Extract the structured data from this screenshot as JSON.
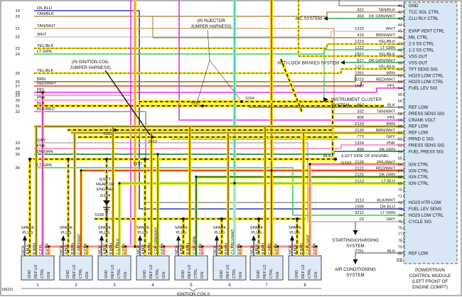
{
  "figure_number": "166221",
  "colors": {
    "sheath": "#ffe60a",
    "dkblu": "#2d3ba8",
    "tanblk": "#b3925a",
    "tanwht": "#cab081",
    "wht": "#c9c9c9",
    "yelblk": "#f0dc00",
    "ltgrn": "#35d04a",
    "brn": "#8f7214",
    "redwht": "#e63329",
    "red": "#dd1111",
    "ppl": "#e231e2",
    "pplwht": "#ef5fe4",
    "pnk": "#ff7fb5",
    "blk": "#1a1a1a",
    "blkwht": "#8f8f8f",
    "gry": "#b3b3b3",
    "dkgrn": "#17722f",
    "dkgrnwht": "#2f9e4f",
    "ltblu": "#2fd6d6",
    "ltbluwht": "#86ecec",
    "brnwht": "#a98b2f",
    "panel": "#d7e7f6",
    "coil_box": "#dfeaf7"
  },
  "left_pins": [
    {
      "num": "19",
      "label": "DK BLU"
    },
    {
      "num": "20",
      "label": "TAN/BLK"
    },
    {
      "num": "21",
      "label": "TAN/WHT"
    },
    {
      "num": "22",
      "label": "WHT"
    },
    {
      "num": "23",
      "label": "YEL/BLK"
    },
    {
      "num": "24",
      "label": "LT GRN"
    },
    {
      "num": "25",
      "label": "YEL/BLK"
    },
    {
      "num": "26",
      "label": "BRN"
    },
    {
      "num": "27",
      "label": "RED/WHT"
    },
    {
      "num": "28",
      "label": "PPL"
    },
    {
      "num": "29",
      "label": "PNK"
    },
    {
      "num": "30",
      "label": "PNK"
    },
    {
      "num": "31",
      "label": "BLK"
    },
    {
      "num": "32",
      "label": "BLK/WHT"
    },
    {
      "num": "33",
      "label": "GRY"
    },
    {
      "num": "34",
      "label": "PNK"
    },
    {
      "num": "35",
      "label": "DK GRN"
    },
    {
      "num": "36",
      "label": "LT GRN"
    }
  ],
  "pcm": {
    "connector_id": "C2",
    "module_lines": [
      "POWERTRAIN",
      "CONTROL MODULE",
      "(LEFT FRONT OF",
      "ENGINE COMPT)"
    ],
    "pins": [
      {
        "num": "41",
        "label": "GND",
        "wire_num": "",
        "wire_color": ""
      },
      {
        "num": "42",
        "label": "TCC SOL CTRL",
        "wire_num": "422",
        "wire_color": "TAN/BLK"
      },
      {
        "num": "43",
        "label": "CLU RLY CTRL",
        "wire_num": "459",
        "wire_color": "DK GRN/WHT"
      },
      {
        "num": "44",
        "label": "",
        "wire_num": "",
        "wire_color": ""
      },
      {
        "num": "45",
        "label": "EVAP VENT CTRL",
        "wire_num": "1310",
        "wire_color": "WHT"
      },
      {
        "num": "46",
        "label": "MIL CTRL",
        "wire_num": "419",
        "wire_color": "BRN/WHT"
      },
      {
        "num": "47",
        "label": "2-3 SS CTRL",
        "wire_num": "1223",
        "wire_color": "YEL/BLK"
      },
      {
        "num": "48",
        "label": "1-2 SS CTRL",
        "wire_num": "1222",
        "wire_color": "LT GRN"
      },
      {
        "num": "49",
        "label": "VSS OUT",
        "wire_num": "1827",
        "wire_color": "YEL/BLK"
      },
      {
        "num": "50",
        "label": "VSS OUT",
        "wire_num": "817",
        "wire_color": "DK GRN/WHT"
      },
      {
        "num": "51",
        "label": "TFT SENS SIG",
        "wire_num": "1227",
        "wire_color": "YEL/BLK"
      },
      {
        "num": "52",
        "label": "HO2S LOW CTRL",
        "wire_num": "2391",
        "wire_color": "BRN"
      },
      {
        "num": "53",
        "label": "HO2S LOW CTRL",
        "wire_num": "3223",
        "wire_color": "RED/WHT"
      },
      {
        "num": "54",
        "label": "FUEL LEV SIG",
        "wire_num": "1589",
        "wire_color": "PPL"
      },
      {
        "num": "55",
        "label": "",
        "wire_num": "",
        "wire_color": ""
      },
      {
        "num": "56",
        "label": "",
        "wire_num": "",
        "wire_color": ""
      },
      {
        "num": "57",
        "label": "REF LOW",
        "wire_num": "852",
        "wire_color": "BLK"
      },
      {
        "num": "58",
        "label": "PRESS SENS SIG",
        "wire_num": "332",
        "wire_color": "TAN/WHT"
      },
      {
        "num": "59",
        "label": "CRANK VOLT",
        "wire_num": "806",
        "wire_color": "PPL"
      },
      {
        "num": "60",
        "label": "REF LOW",
        "wire_num": "2129",
        "wire_color": "BRN"
      },
      {
        "num": "61",
        "label": "REF LOW",
        "wire_num": "2130",
        "wire_color": "BRN/WHT"
      },
      {
        "num": "62",
        "label": "PRND C SIG",
        "wire_num": "773",
        "wire_color": "GRY"
      },
      {
        "num": "63",
        "label": "PRESS SENS SIG",
        "wire_num": "1224",
        "wire_color": "PNK"
      },
      {
        "num": "64",
        "label": "FUEL PRESS SIG",
        "wire_num": "890",
        "wire_color": "DK GRN"
      },
      {
        "num": "65",
        "label": "",
        "wire_num": "",
        "wire_color": ""
      },
      {
        "num": "66",
        "label": "IGN CTRL",
        "wire_num": "2128",
        "wire_color": "PPL/WHT"
      },
      {
        "num": "67",
        "label": "IGN CTRL",
        "wire_num": "2122",
        "wire_color": "RED/WHT"
      },
      {
        "num": "68",
        "label": "IGN CTRL",
        "wire_num": "2125",
        "wire_color": "DK GRN"
      },
      {
        "num": "69",
        "label": "IGN CTRL",
        "wire_num": "2123",
        "wire_color": "LT BLU"
      },
      {
        "num": "70",
        "label": "",
        "wire_num": "",
        "wire_color": ""
      },
      {
        "num": "71",
        "label": "",
        "wire_num": "",
        "wire_color": ""
      },
      {
        "num": "72",
        "label": "HO2S HTR LOW",
        "wire_num": "3113",
        "wire_color": "BLK/WHT"
      },
      {
        "num": "73",
        "label": "FUEL LEV SENS",
        "wire_num": "1936",
        "wire_color": "DK BLU"
      },
      {
        "num": "74",
        "label": "HO2S LOW CTRL",
        "wire_num": "3212",
        "wire_color": "LT GRN"
      },
      {
        "num": "75",
        "label": "CYCLE SIG",
        "wire_num": "23",
        "wire_color": "GRY"
      },
      {
        "num": "76",
        "label": "",
        "wire_num": "",
        "wire_color": ""
      },
      {
        "num": "77",
        "label": "",
        "wire_num": "",
        "wire_color": ""
      },
      {
        "num": "78",
        "label": "",
        "wire_num": "",
        "wire_color": ""
      },
      {
        "num": "79",
        "label": "",
        "wire_num": "",
        "wire_color": ""
      },
      {
        "num": "80",
        "label": "REF LOW",
        "wire_num": "2751",
        "wire_color": "BLK"
      }
    ]
  },
  "systems": {
    "ac": "A/C SYSTEM",
    "abs": "ANTI-LOCK BRAKES SYSTEM",
    "cluster": [
      "INSTRUMENT CLUSTER",
      "SYSTEM"
    ],
    "starting": [
      "STARTING/CHARGING",
      "SYSTEM"
    ],
    "aircond": [
      "AIR CONDITIONING",
      "SYSTEM"
    ]
  },
  "notes": {
    "injector_harness": [
      "(IN INJECTOR",
      "JUMPER HARNESS)"
    ],
    "ignition_harness": [
      "(IN IGNITION COIL",
      "JUMPER HARNESS)"
    ],
    "g104_location": [
      "(LEFT",
      "REAR OF",
      "ENGINE)"
    ],
    "g104": "G104",
    "g102_wire": "BLK",
    "g102_location": "(LEFT SIDE OF ENGINE)",
    "g102": "G102"
  },
  "splices": [
    "S151",
    "S152",
    "S153",
    "S154",
    "S157",
    "S158"
  ],
  "coils": {
    "group_label": "IGNITION COILS",
    "spark_plug": [
      "SPARK",
      "PLUG"
    ],
    "terminals": [
      "GND",
      "REF LO",
      "CTRL",
      "IGN"
    ],
    "items": [
      {
        "num": "1",
        "wires": [
          "N/CA",
          "A BLK",
          "B BRN",
          "C PPL",
          "D PNK"
        ]
      },
      {
        "num": "2",
        "wires": [
          "N/CA",
          "A BLK",
          "B BRN",
          "C RED/WHT",
          "D PNK"
        ]
      },
      {
        "num": "3",
        "wires": [
          "N/CA",
          "A BLK",
          "B BRN",
          "C LT BLU",
          "D PNK"
        ]
      },
      {
        "num": "4",
        "wires": [
          "N/CA",
          "A BLK",
          "B BRN",
          "C DK GRN/WHT",
          "D PNK"
        ]
      },
      {
        "num": "5",
        "wires": [
          "N/CA",
          "A BLK",
          "B BRN",
          "C DK GRN",
          "D PNK"
        ]
      },
      {
        "num": "6",
        "wires": [
          "N/CA",
          "A BLK",
          "B BRN",
          "C LT BLU/WHT",
          "D PNK"
        ]
      },
      {
        "num": "7",
        "wires": [
          "N/CA",
          "A BLK",
          "B BRN",
          "C RED",
          "D PNK"
        ]
      },
      {
        "num": "8",
        "wires": [
          "N/CA",
          "A BLK",
          "B BRN",
          "C PPL/WHT",
          "D PNK"
        ]
      }
    ]
  }
}
